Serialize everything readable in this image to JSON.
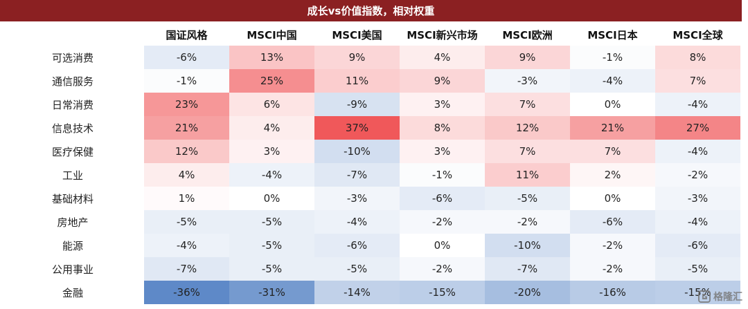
{
  "chart_data": {
    "type": "heatmap",
    "title": "成长vs价值指数，相对权重",
    "columns": [
      "国证风格",
      "MSCI中国",
      "MSCI美国",
      "MSCI新兴市场",
      "MSCI欧洲",
      "MSCI日本",
      "MSCI全球"
    ],
    "rows": [
      {
        "label": "可选消费",
        "values": [
          -6,
          13,
          9,
          4,
          9,
          -1,
          8
        ]
      },
      {
        "label": "通信服务",
        "values": [
          -1,
          25,
          11,
          9,
          -3,
          -4,
          7
        ]
      },
      {
        "label": "日常消费",
        "values": [
          23,
          6,
          -9,
          3,
          7,
          0,
          -4
        ]
      },
      {
        "label": "信息技术",
        "values": [
          21,
          4,
          37,
          8,
          12,
          21,
          27
        ]
      },
      {
        "label": "医疗保健",
        "values": [
          12,
          3,
          -10,
          3,
          7,
          7,
          -4
        ]
      },
      {
        "label": "工业",
        "values": [
          4,
          -4,
          -7,
          -1,
          11,
          2,
          -2
        ]
      },
      {
        "label": "基础材料",
        "values": [
          1,
          0,
          -3,
          -6,
          -5,
          0,
          -3
        ]
      },
      {
        "label": "房地产",
        "values": [
          -5,
          -5,
          -4,
          -2,
          -2,
          -6,
          -4
        ]
      },
      {
        "label": "能源",
        "values": [
          -4,
          -5,
          -6,
          0,
          -10,
          -2,
          -6
        ]
      },
      {
        "label": "公用事业",
        "values": [
          -7,
          -5,
          -5,
          -2,
          -7,
          -2,
          -5
        ]
      },
      {
        "label": "金融",
        "values": [
          -36,
          -31,
          -14,
          -15,
          -20,
          -16,
          -15
        ]
      }
    ],
    "value_suffix": "%",
    "colors": {
      "positive": "#f0585a",
      "negative": "#5a86c6",
      "neutral": "#ffffff"
    }
  },
  "watermark": {
    "text": "格隆汇",
    "icon": "gelonghui-logo-icon"
  }
}
